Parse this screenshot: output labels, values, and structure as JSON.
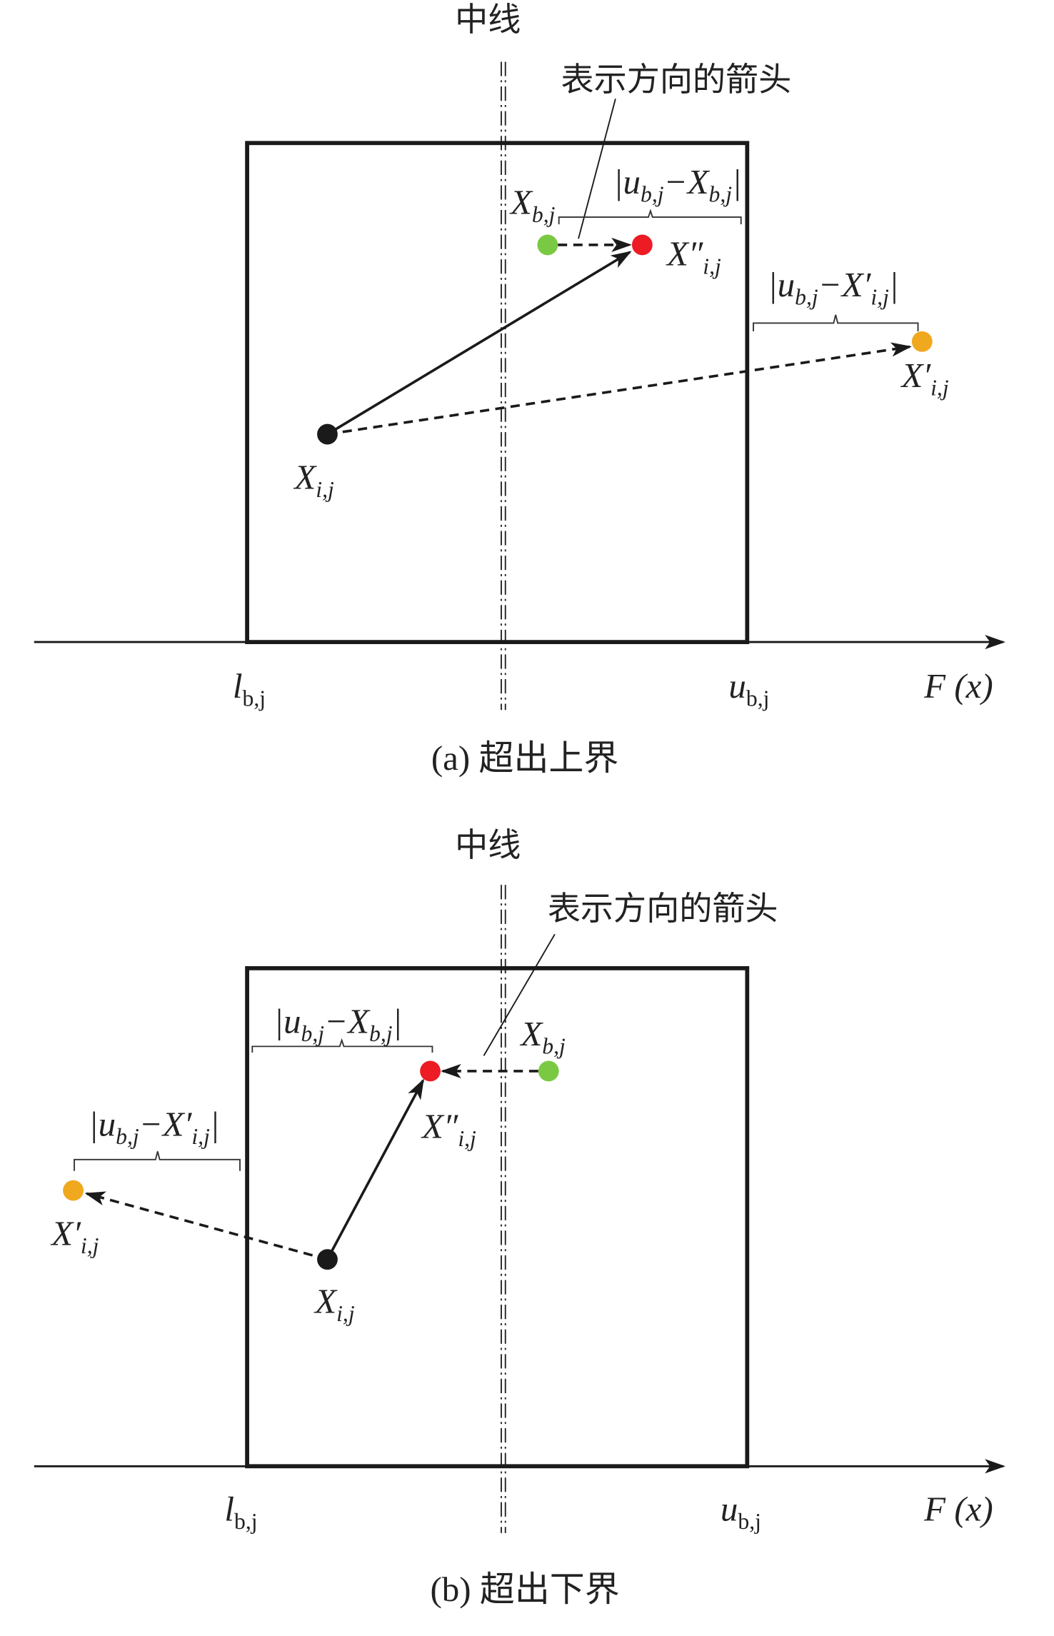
{
  "colors": {
    "current": "#1a1a1a",
    "best": "#7ac943",
    "corrected": "#ed1c24",
    "candidate": "#f0a81e",
    "line": "#1a1a1a"
  },
  "panels": [
    {
      "caption": "(a) 超出上界",
      "midline_label": "中线",
      "arrow_note": "表示方向的箭头",
      "axis_label": {
        "main": "F",
        "rest": " (x)"
      },
      "lower_label": {
        "main": "l",
        "sub": "b,j"
      },
      "upper_label": {
        "main": "u",
        "sub": "b,j"
      },
      "labels": {
        "x_ij": [
          {
            "t": "X"
          },
          {
            "t": "i,j",
            "sub": true
          }
        ],
        "x_bj": [
          {
            "t": "X"
          },
          {
            "t": "b,j",
            "sub": true
          }
        ],
        "x_pp": [
          {
            "t": "X″"
          },
          {
            "t": "i,j",
            "sub": true
          }
        ],
        "x_p": [
          {
            "t": "X′"
          },
          {
            "t": "i,j",
            "sub": true
          }
        ],
        "dist_b": [
          {
            "t": "|u",
            "up": false
          },
          {
            "t": "b,j",
            "sub": true
          },
          {
            "t": "−X"
          },
          {
            "t": "b,j",
            "sub": true
          },
          {
            "t": "|"
          }
        ],
        "dist_p": [
          {
            "t": "|u"
          },
          {
            "t": "b,j",
            "sub": true
          },
          {
            "t": "−X′"
          },
          {
            "t": "i,j",
            "sub": true
          },
          {
            "t": "|"
          }
        ]
      }
    },
    {
      "caption": "(b) 超出下界",
      "midline_label": "中线",
      "arrow_note": "表示方向的箭头",
      "axis_label": {
        "main": "F",
        "rest": " (x)"
      },
      "lower_label": {
        "main": "l",
        "sub": "b,j"
      },
      "upper_label": {
        "main": "u",
        "sub": "b,j"
      },
      "labels": {
        "x_ij": [
          {
            "t": "X"
          },
          {
            "t": "i,j",
            "sub": true
          }
        ],
        "x_bj": [
          {
            "t": "X"
          },
          {
            "t": "b,j",
            "sub": true
          }
        ],
        "x_pp": [
          {
            "t": "X″"
          },
          {
            "t": "i,j",
            "sub": true
          }
        ],
        "x_p": [
          {
            "t": "X′"
          },
          {
            "t": "i,j",
            "sub": true
          }
        ],
        "dist_b": [
          {
            "t": "|u"
          },
          {
            "t": "b,j",
            "sub": true
          },
          {
            "t": "−X"
          },
          {
            "t": "b,j",
            "sub": true
          },
          {
            "t": "|"
          }
        ],
        "dist_p": [
          {
            "t": "|u"
          },
          {
            "t": "b,j",
            "sub": true
          },
          {
            "t": "−X′"
          },
          {
            "t": "i,j",
            "sub": true
          },
          {
            "t": "|"
          }
        ]
      }
    }
  ]
}
